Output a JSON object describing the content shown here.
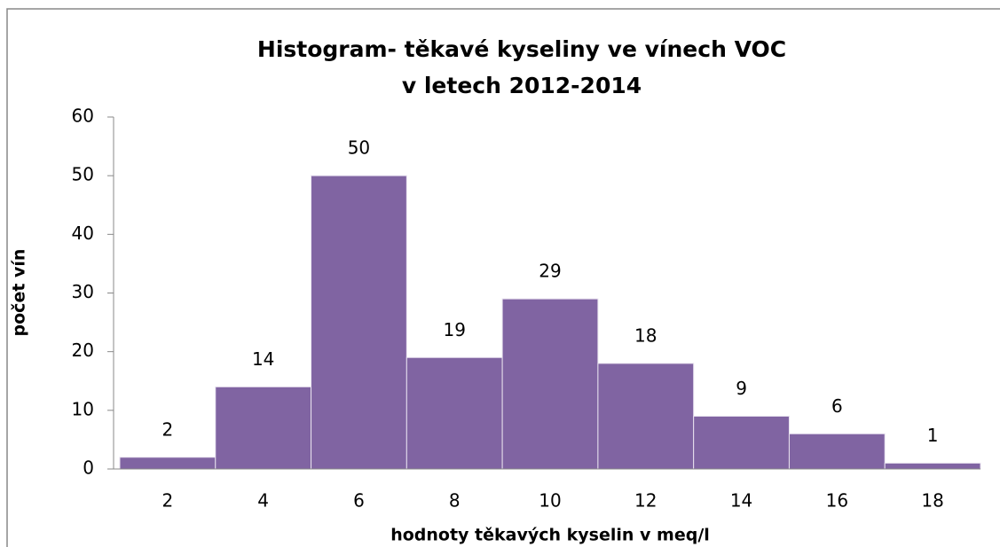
{
  "chart_data": {
    "type": "histogram",
    "title": [
      "Histogram- těkavé kyseliny ve vínech VOC",
      "v letech 2012-2014"
    ],
    "x_label": "hodnoty těkavých kyselin v meq/l",
    "y_label": "počet vín",
    "bins": [
      1,
      3,
      5,
      7,
      9,
      11,
      13,
      15,
      17,
      19
    ],
    "values": [
      2,
      14,
      50,
      19,
      29,
      18,
      9,
      6,
      1
    ],
    "color": "#8064a2",
    "xlim": [
      1,
      19
    ],
    "xticks": [
      2,
      4,
      6,
      8,
      10,
      12,
      14,
      16,
      18
    ],
    "ylim": [
      0,
      60
    ],
    "yticks": [
      0,
      10,
      20,
      30,
      40,
      50,
      60
    ]
  }
}
